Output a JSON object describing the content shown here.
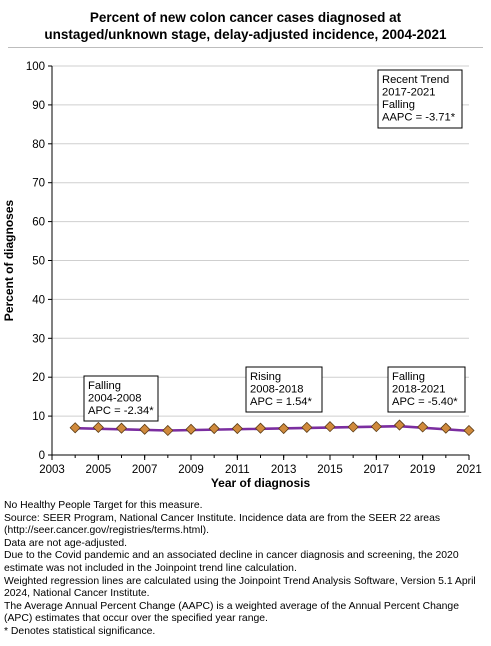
{
  "title_lines": [
    "Percent of new colon cancer cases diagnosed at",
    "unstaged/unknown stage, delay-adjusted incidence, 2004-2021"
  ],
  "chart_data": {
    "type": "line",
    "xlabel": "Year of diagnosis",
    "ylabel": "Percent of diagnoses",
    "xlim": [
      2003,
      2021
    ],
    "ylim": [
      0,
      100
    ],
    "x_ticks": [
      "2003",
      "2005",
      "2007",
      "2009",
      "2011",
      "2013",
      "2015",
      "2017",
      "2019",
      "2021"
    ],
    "y_ticks": [
      "0",
      "10",
      "20",
      "30",
      "40",
      "50",
      "60",
      "70",
      "80",
      "90",
      "100"
    ],
    "grid": "horizontal",
    "series": [
      {
        "name": "observed",
        "marker": "diamond",
        "color": "#d08a3c",
        "x": [
          2004,
          2005,
          2006,
          2007,
          2008,
          2009,
          2010,
          2011,
          2012,
          2013,
          2014,
          2015,
          2016,
          2017,
          2018,
          2019,
          2020,
          2021
        ],
        "values": [
          7.0,
          7.1,
          6.9,
          6.6,
          6.3,
          6.6,
          6.8,
          6.8,
          6.9,
          6.8,
          7.1,
          7.3,
          7.2,
          7.3,
          7.7,
          7.2,
          6.9,
          6.3
        ]
      },
      {
        "name": "trend",
        "color": "#7b2ea0",
        "x": [
          2004,
          2008,
          2018,
          2021
        ],
        "values": [
          6.9,
          6.3,
          7.4,
          6.2
        ]
      }
    ],
    "annotations": [
      {
        "lines": [
          "Recent Trend",
          "2017-2021",
          "Falling",
          "AAPC = -3.71*"
        ],
        "position": "top-right"
      },
      {
        "lines": [
          "Falling",
          "2004-2008",
          "APC = -2.34*"
        ],
        "position": "bottom-left"
      },
      {
        "lines": [
          "Rising",
          "2008-2018",
          "APC =  1.54*"
        ],
        "position": "bottom-center"
      },
      {
        "lines": [
          "Falling",
          "2018-2021",
          "APC = -5.40*"
        ],
        "position": "bottom-right"
      }
    ]
  },
  "footnotes": [
    "No Healthy People Target for this measure.",
    "Source: SEER Program, National Cancer Institute. Incidence data are from the SEER 22 areas (http://seer.cancer.gov/registries/terms.html).",
    "Data are not age-adjusted.",
    "Due to the Covid pandemic and an associated decline in cancer diagnosis and screening, the 2020 estimate was not included in the Joinpoint trend line calculation.",
    "Weighted regression lines are calculated using the Joinpoint Trend Analysis Software, Version 5.1 April 2024, National Cancer Institute.",
    "The Average Annual Percent Change (AAPC) is a weighted average of the Annual Percent Change (APC) estimates that occur over the specified year range.",
    "* Denotes statistical significance."
  ]
}
